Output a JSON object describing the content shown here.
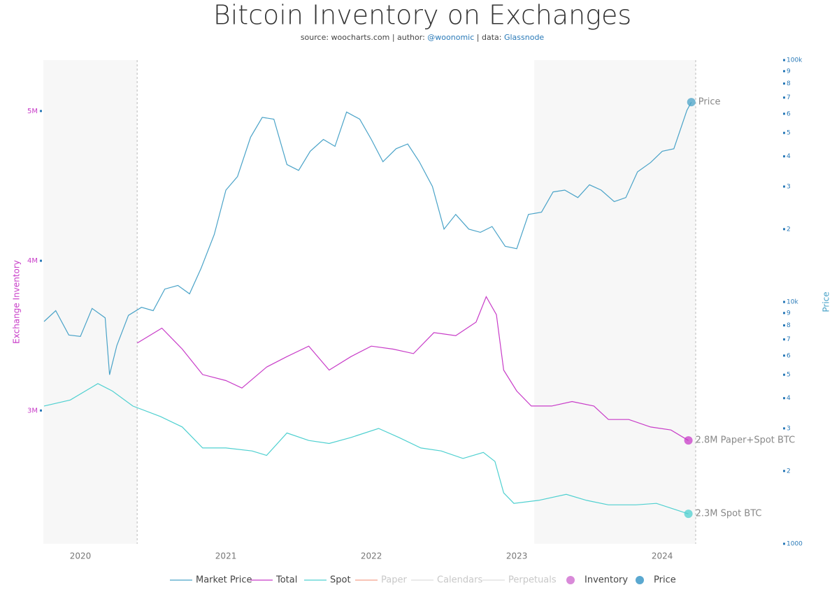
{
  "chart_data": {
    "type": "line",
    "title": "Bitcoin Inventory on Exchanges",
    "subtitle_parts": [
      "source: woocharts.com | author: ",
      "@woonomic",
      " | data: ",
      "Glassnode"
    ],
    "subtitle_colors": [
      "#444444",
      "#2a7ab8",
      "#444444",
      "#2a7ab8"
    ],
    "y_label": "Exchange Inventory",
    "y2_label": "Price",
    "xlim": [
      2019.745,
      2024.23
    ],
    "xticks": [
      2020,
      2021,
      2022,
      2023,
      2024
    ],
    "ylim": [
      2.11,
      5.34
    ],
    "yticks": [
      {
        "value": 3,
        "label": "3M"
      },
      {
        "value": 4,
        "label": "4M"
      },
      {
        "value": 5,
        "label": "5M"
      }
    ],
    "y2_log": true,
    "y2lim": [
      1000,
      100000
    ],
    "y2ticks": [
      1000,
      {
        "value": 2000,
        "label": "2"
      },
      {
        "value": 3000,
        "label": "3"
      },
      {
        "value": 4000,
        "label": "4"
      },
      {
        "value": 5000,
        "label": "5"
      },
      {
        "value": 6000,
        "label": "6"
      },
      {
        "value": 7000,
        "label": "7"
      },
      {
        "value": 8000,
        "label": "8"
      },
      {
        "value": 9000,
        "label": "9"
      },
      {
        "value": 10000,
        "label": "10k"
      },
      {
        "value": 20000,
        "label": "2"
      },
      {
        "value": 30000,
        "label": "3"
      },
      {
        "value": 40000,
        "label": "4"
      },
      {
        "value": 50000,
        "label": "5"
      },
      {
        "value": 60000,
        "label": "6"
      },
      {
        "value": 70000,
        "label": "7"
      },
      {
        "value": 80000,
        "label": "8"
      },
      {
        "value": 90000,
        "label": "9"
      },
      {
        "value": 100000,
        "label": "100k"
      }
    ],
    "grid": false,
    "shaded_ranges": [
      [
        2019.745,
        2020.39
      ],
      [
        2023.12,
        2024.23
      ]
    ],
    "series": [
      {
        "name": "Market Price",
        "color": "#4aa3c8",
        "axis": "y2",
        "x": [
          2019.75,
          2019.83,
          2019.92,
          2020.0,
          2020.08,
          2020.17,
          2020.2,
          2020.25,
          2020.33,
          2020.42,
          2020.5,
          2020.58,
          2020.67,
          2020.75,
          2020.83,
          2020.92,
          2021.0,
          2021.08,
          2021.17,
          2021.25,
          2021.33,
          2021.42,
          2021.5,
          2021.58,
          2021.67,
          2021.75,
          2021.83,
          2021.92,
          2022.0,
          2022.08,
          2022.17,
          2022.25,
          2022.33,
          2022.42,
          2022.5,
          2022.58,
          2022.67,
          2022.75,
          2022.83,
          2022.92,
          2023.0,
          2023.08,
          2023.17,
          2023.25,
          2023.33,
          2023.42,
          2023.5,
          2023.58,
          2023.67,
          2023.75,
          2023.83,
          2023.92,
          2024.0,
          2024.08,
          2024.17,
          2024.2
        ],
        "values": [
          8300,
          9200,
          7300,
          7200,
          9400,
          8600,
          5000,
          6600,
          8800,
          9500,
          9200,
          11300,
          11700,
          10800,
          13800,
          19000,
          29000,
          33000,
          48000,
          58000,
          57000,
          37000,
          35000,
          42000,
          47000,
          44000,
          61000,
          57000,
          47000,
          38000,
          43000,
          45000,
          38000,
          30000,
          20000,
          23000,
          20000,
          19400,
          20500,
          17000,
          16600,
          23000,
          23500,
          28500,
          29000,
          27000,
          30500,
          29000,
          26000,
          27000,
          34500,
          37700,
          42000,
          43000,
          62000,
          67000
        ]
      },
      {
        "name": "Total",
        "color": "#c83cc8",
        "axis": "y",
        "x": [
          2020.39,
          2020.56,
          2020.7,
          2020.84,
          2021.0,
          2021.11,
          2021.28,
          2021.42,
          2021.57,
          2021.71,
          2021.86,
          2022.0,
          2022.15,
          2022.29,
          2022.43,
          2022.58,
          2022.72,
          2022.79,
          2022.86,
          2022.91,
          2023.0,
          2023.1,
          2023.24,
          2023.38,
          2023.53,
          2023.63,
          2023.77,
          2023.92,
          2024.06,
          2024.18
        ],
        "values": [
          3.45,
          3.55,
          3.41,
          3.24,
          3.2,
          3.15,
          3.29,
          3.36,
          3.43,
          3.27,
          3.36,
          3.43,
          3.41,
          3.38,
          3.52,
          3.5,
          3.59,
          3.76,
          3.64,
          3.27,
          3.13,
          3.03,
          3.03,
          3.06,
          3.03,
          2.94,
          2.94,
          2.89,
          2.87,
          2.8
        ]
      },
      {
        "name": "Spot",
        "color": "#4fd0d0",
        "axis": "y",
        "x": [
          2019.75,
          2019.93,
          2020.12,
          2020.22,
          2020.36,
          2020.55,
          2020.7,
          2020.84,
          2021.0,
          2021.18,
          2021.28,
          2021.42,
          2021.57,
          2021.71,
          2021.86,
          2022.05,
          2022.19,
          2022.34,
          2022.48,
          2022.63,
          2022.77,
          2022.85,
          2022.91,
          2022.98,
          2023.15,
          2023.34,
          2023.48,
          2023.63,
          2023.82,
          2023.96,
          2024.18
        ],
        "values": [
          3.03,
          3.07,
          3.18,
          3.13,
          3.03,
          2.96,
          2.89,
          2.75,
          2.75,
          2.73,
          2.7,
          2.85,
          2.8,
          2.78,
          2.82,
          2.88,
          2.82,
          2.75,
          2.73,
          2.68,
          2.72,
          2.66,
          2.45,
          2.38,
          2.4,
          2.44,
          2.4,
          2.37,
          2.37,
          2.38,
          2.31
        ]
      },
      {
        "name": "Paper",
        "color": "#f4a08a",
        "axis": "y",
        "visible": false,
        "x": [],
        "values": []
      },
      {
        "name": "Calendars",
        "color": "#dddddd",
        "axis": "y",
        "visible": false,
        "x": [],
        "values": []
      },
      {
        "name": "Perpetuals",
        "color": "#dddddd",
        "axis": "y",
        "visible": false,
        "x": [],
        "values": []
      }
    ],
    "legend_markers": [
      {
        "name": "Inventory",
        "color": "#d98ad9"
      },
      {
        "name": "Price",
        "color": "#5aa8d0"
      }
    ],
    "annotations": [
      {
        "series": 0,
        "text": "Price"
      },
      {
        "series": 1,
        "text": "2.8M Paper+Spot BTC"
      },
      {
        "series": 2,
        "text": "2.3M Spot BTC"
      }
    ]
  }
}
